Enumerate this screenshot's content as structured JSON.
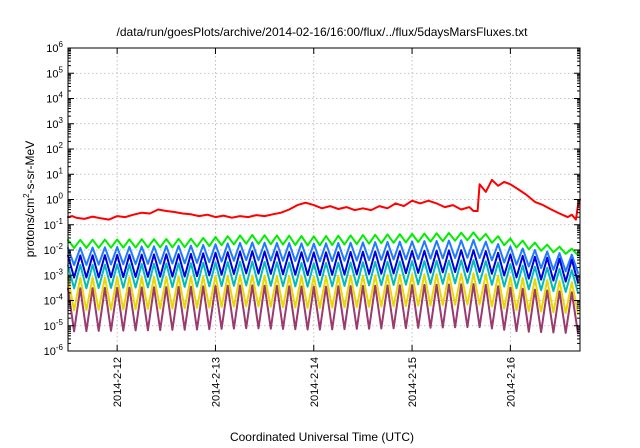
{
  "chart_data": {
    "type": "line",
    "title": "/data/run/goesPlots/archive/2014-02-16/16:00/flux/../flux/5daysMarsFluxes.txt",
    "xlabel": "Coordinated Universal Time (UTC)",
    "ylabel": {
      "base": "protons/cm",
      "sup": "2",
      "rest": "-s-sr-MeV"
    },
    "yscale": "log",
    "ylim": [
      1e-06,
      1000000.0
    ],
    "y_ticks": [
      {
        "value": 1e-06,
        "base": "10",
        "exp": "-6"
      },
      {
        "value": 1e-05,
        "base": "10",
        "exp": "-5"
      },
      {
        "value": 0.0001,
        "base": "10",
        "exp": "-4"
      },
      {
        "value": 0.001,
        "base": "10",
        "exp": "-3"
      },
      {
        "value": 0.01,
        "base": "10",
        "exp": "-2"
      },
      {
        "value": 0.1,
        "base": "10",
        "exp": "-1"
      },
      {
        "value": 1.0,
        "base": "10",
        "exp": "0"
      },
      {
        "value": 10.0,
        "base": "10",
        "exp": "1"
      },
      {
        "value": 100.0,
        "base": "10",
        "exp": "2"
      },
      {
        "value": 1000.0,
        "base": "10",
        "exp": "3"
      },
      {
        "value": 10000.0,
        "base": "10",
        "exp": "4"
      },
      {
        "value": 100000.0,
        "base": "10",
        "exp": "5"
      },
      {
        "value": 1000000.0,
        "base": "10",
        "exp": "6"
      }
    ],
    "xlim": [
      "2014-02-11T12:00",
      "2014-02-16T17:00"
    ],
    "x_ticks": [
      {
        "value": "2014-02-12T00:00",
        "label": "2014-2-12"
      },
      {
        "value": "2014-02-13T00:00",
        "label": "2014-2-13"
      },
      {
        "value": "2014-02-14T00:00",
        "label": "2014-2-14"
      },
      {
        "value": "2014-02-15T00:00",
        "label": "2014-2-15"
      },
      {
        "value": "2014-02-16T00:00",
        "label": "2014-2-16"
      }
    ],
    "grid": true,
    "legend": "none",
    "series": [
      {
        "color": "#ff0000",
        "points": [
          [
            "2014-02-11T12:00",
            0.2
          ],
          [
            "2014-02-11T13:00",
            0.22
          ],
          [
            "2014-02-11T14:00",
            0.19
          ],
          [
            "2014-02-11T16:00",
            0.17
          ],
          [
            "2014-02-11T18:00",
            0.21
          ],
          [
            "2014-02-11T20:00",
            0.18
          ],
          [
            "2014-02-11T22:00",
            0.16
          ],
          [
            "2014-02-12T00:00",
            0.22
          ],
          [
            "2014-02-12T02:00",
            0.2
          ],
          [
            "2014-02-12T04:00",
            0.25
          ],
          [
            "2014-02-12T06:00",
            0.3
          ],
          [
            "2014-02-12T08:00",
            0.28
          ],
          [
            "2014-02-12T10:00",
            0.4
          ],
          [
            "2014-02-12T12:00",
            0.35
          ],
          [
            "2014-02-12T14:00",
            0.32
          ],
          [
            "2014-02-12T16:00",
            0.28
          ],
          [
            "2014-02-12T18:00",
            0.26
          ],
          [
            "2014-02-12T20:00",
            0.22
          ],
          [
            "2014-02-12T22:00",
            0.25
          ],
          [
            "2014-02-13T00:00",
            0.2
          ],
          [
            "2014-02-13T02:00",
            0.23
          ],
          [
            "2014-02-13T04:00",
            0.19
          ],
          [
            "2014-02-13T06:00",
            0.22
          ],
          [
            "2014-02-13T08:00",
            0.2
          ],
          [
            "2014-02-13T10:00",
            0.24
          ],
          [
            "2014-02-13T12:00",
            0.22
          ],
          [
            "2014-02-13T14:00",
            0.26
          ],
          [
            "2014-02-13T16:00",
            0.3
          ],
          [
            "2014-02-13T18:00",
            0.4
          ],
          [
            "2014-02-13T20:00",
            0.6
          ],
          [
            "2014-02-13T22:00",
            0.75
          ],
          [
            "2014-02-14T00:00",
            0.6
          ],
          [
            "2014-02-14T02:00",
            0.45
          ],
          [
            "2014-02-14T04:00",
            0.55
          ],
          [
            "2014-02-14T06:00",
            0.42
          ],
          [
            "2014-02-14T08:00",
            0.5
          ],
          [
            "2014-02-14T10:00",
            0.38
          ],
          [
            "2014-02-14T12:00",
            0.45
          ],
          [
            "2014-02-14T14:00",
            0.38
          ],
          [
            "2014-02-14T16:00",
            0.55
          ],
          [
            "2014-02-14T18:00",
            0.45
          ],
          [
            "2014-02-14T20:00",
            0.7
          ],
          [
            "2014-02-14T22:00",
            0.55
          ],
          [
            "2014-02-15T00:00",
            0.9
          ],
          [
            "2014-02-15T02:00",
            0.7
          ],
          [
            "2014-02-15T04:00",
            0.9
          ],
          [
            "2014-02-15T06:00",
            0.7
          ],
          [
            "2014-02-15T08:00",
            0.5
          ],
          [
            "2014-02-15T10:00",
            0.6
          ],
          [
            "2014-02-15T12:00",
            0.4
          ],
          [
            "2014-02-15T14:00",
            0.5
          ],
          [
            "2014-02-15T15:00",
            0.35
          ],
          [
            "2014-02-15T16:00",
            0.35
          ],
          [
            "2014-02-15T16:30",
            4
          ],
          [
            "2014-02-15T18:00",
            2
          ],
          [
            "2014-02-15T19:30",
            6
          ],
          [
            "2014-02-15T21:00",
            3.5
          ],
          [
            "2014-02-15T22:30",
            5
          ],
          [
            "2014-02-16T00:00",
            4
          ],
          [
            "2014-02-16T02:00",
            2.5
          ],
          [
            "2014-02-16T04:00",
            1.5
          ],
          [
            "2014-02-16T06:00",
            0.8
          ],
          [
            "2014-02-16T08:00",
            0.6
          ],
          [
            "2014-02-16T10:00",
            0.4
          ],
          [
            "2014-02-16T12:00",
            0.28
          ],
          [
            "2014-02-16T14:00",
            0.2
          ],
          [
            "2014-02-16T15:00",
            0.25
          ],
          [
            "2014-02-16T16:00",
            0.16
          ],
          [
            "2014-02-16T16:30",
            0.6
          ],
          [
            "2014-02-16T17:00",
            1.0
          ]
        ]
      },
      {
        "color": "#00ee00",
        "sawtooth": {
          "start": "2014-02-11T12:00",
          "end": "2014-02-16T17:00",
          "step_hours": 1.5,
          "high": [
            [
              0,
              0.025
            ],
            [
              30,
              0.028
            ],
            [
              44,
              0.04
            ],
            [
              60,
              0.035
            ],
            [
              100,
              0.05
            ],
            [
              110,
              0.025
            ],
            [
              125,
              0.01
            ]
          ],
          "low": [
            [
              0,
              0.012
            ],
            [
              30,
              0.013
            ],
            [
              44,
              0.018
            ],
            [
              60,
              0.015
            ],
            [
              100,
              0.025
            ],
            [
              110,
              0.012
            ],
            [
              125,
              0.006
            ]
          ]
        }
      },
      {
        "color": "#1e7bff",
        "sawtooth": {
          "start": "2014-02-11T12:00",
          "end": "2014-02-16T17:00",
          "step_hours": 1.5,
          "high": [
            [
              0,
              0.012
            ],
            [
              30,
              0.015
            ],
            [
              44,
              0.02
            ],
            [
              60,
              0.018
            ],
            [
              100,
              0.025
            ],
            [
              110,
              0.012
            ],
            [
              125,
              0.006
            ]
          ],
          "low": [
            [
              0,
              0.0025
            ],
            [
              30,
              0.003
            ],
            [
              44,
              0.004
            ],
            [
              60,
              0.0035
            ],
            [
              100,
              0.005
            ],
            [
              110,
              0.0025
            ],
            [
              125,
              0.0012
            ]
          ]
        }
      },
      {
        "color": "#0000dd",
        "sawtooth": {
          "start": "2014-02-11T12:00",
          "end": "2014-02-16T17:00",
          "step_hours": 1.5,
          "high": [
            [
              0,
              0.006
            ],
            [
              30,
              0.007
            ],
            [
              44,
              0.009
            ],
            [
              60,
              0.008
            ],
            [
              100,
              0.01
            ],
            [
              110,
              0.006
            ],
            [
              125,
              0.004
            ]
          ],
          "low": [
            [
              0,
              0.0008
            ],
            [
              30,
              0.0009
            ],
            [
              44,
              0.0012
            ],
            [
              60,
              0.001
            ],
            [
              100,
              0.0014
            ],
            [
              110,
              0.0008
            ],
            [
              125,
              0.0005
            ]
          ]
        }
      },
      {
        "color": "#00bbbb",
        "sawtooth": {
          "start": "2014-02-11T12:00",
          "end": "2014-02-16T17:00",
          "step_hours": 1.5,
          "high": [
            [
              0,
              0.0025
            ],
            [
              30,
              0.003
            ],
            [
              44,
              0.0035
            ],
            [
              60,
              0.003
            ],
            [
              100,
              0.004
            ],
            [
              110,
              0.0025
            ],
            [
              125,
              0.0015
            ]
          ],
          "low": [
            [
              0,
              0.0003
            ],
            [
              30,
              0.00035
            ],
            [
              44,
              0.0004
            ],
            [
              60,
              0.00035
            ],
            [
              100,
              0.0005
            ],
            [
              110,
              0.0003
            ],
            [
              125,
              0.0002
            ]
          ]
        }
      },
      {
        "color": "#e8d800",
        "sawtooth": {
          "start": "2014-02-11T12:00",
          "end": "2014-02-16T17:00",
          "step_hours": 1.5,
          "high": [
            [
              0,
              0.0008
            ],
            [
              30,
              0.0009
            ],
            [
              44,
              0.001
            ],
            [
              60,
              0.0009
            ],
            [
              100,
              0.0012
            ],
            [
              110,
              0.0008
            ],
            [
              125,
              0.0005
            ]
          ],
          "low": [
            [
              0,
              4e-05
            ],
            [
              30,
              5e-05
            ],
            [
              44,
              6e-05
            ],
            [
              60,
              5e-05
            ],
            [
              100,
              7e-05
            ],
            [
              110,
              4e-05
            ],
            [
              125,
              3e-05
            ]
          ]
        }
      },
      {
        "color": "#9a3a6e",
        "sawtooth": {
          "start": "2014-02-11T12:00",
          "end": "2014-02-16T17:00",
          "step_hours": 1.5,
          "high": [
            [
              0,
              0.0003
            ],
            [
              30,
              0.00035
            ],
            [
              44,
              0.0004
            ],
            [
              60,
              0.00035
            ],
            [
              100,
              0.00045
            ],
            [
              110,
              0.0003
            ],
            [
              125,
              0.0002
            ]
          ],
          "low": [
            [
              0,
              6e-06
            ],
            [
              30,
              7e-06
            ],
            [
              44,
              8e-06
            ],
            [
              60,
              7e-06
            ],
            [
              100,
              9e-06
            ],
            [
              110,
              6e-06
            ],
            [
              125,
              5e-06
            ]
          ]
        }
      }
    ]
  }
}
